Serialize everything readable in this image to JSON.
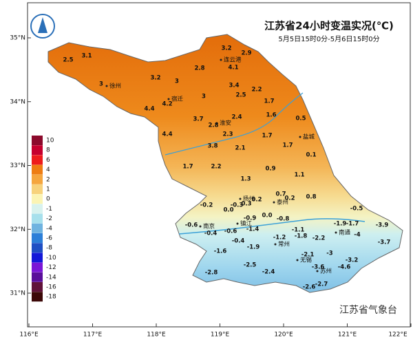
{
  "header": {
    "title": "江苏省24小时变温实况(℃)",
    "subtitle": "5月5日15时0分-5月6日15时0分"
  },
  "agency": "江苏省气象台",
  "lon_ticks": [
    {
      "value": 116,
      "label": "116°E"
    },
    {
      "value": 117,
      "label": "117°E"
    },
    {
      "value": 118,
      "label": "118°E"
    },
    {
      "value": 119,
      "label": "119°E"
    },
    {
      "value": 120,
      "label": "120°E"
    },
    {
      "value": 121,
      "label": "121°E"
    },
    {
      "value": 122,
      "label": "122°E"
    }
  ],
  "lat_ticks": [
    {
      "value": 35,
      "label": "35°N"
    },
    {
      "value": 34,
      "label": "34°N"
    },
    {
      "value": 33,
      "label": "33°N"
    },
    {
      "value": 32,
      "label": "32°N"
    },
    {
      "value": 31,
      "label": "31°N"
    }
  ],
  "legend": [
    {
      "value": 10,
      "color": "#8c0a2c"
    },
    {
      "value": 8,
      "color": "#c6002e"
    },
    {
      "value": 6,
      "color": "#ee1c1c"
    },
    {
      "value": 4,
      "color": "#ee7d13"
    },
    {
      "value": 2,
      "color": "#f5a63e"
    },
    {
      "value": 1,
      "color": "#f7d27c"
    },
    {
      "value": 0,
      "color": "#fbf4b4"
    },
    {
      "value": -1,
      "color": "#d8f2ee"
    },
    {
      "value": -2,
      "color": "#a7e0ec"
    },
    {
      "value": -4,
      "color": "#6fb3e0"
    },
    {
      "value": -6,
      "color": "#2c7fd8"
    },
    {
      "value": -8,
      "color": "#1f4fc4"
    },
    {
      "value": -10,
      "color": "#1318d8"
    },
    {
      "value": -12,
      "color": "#7a16d6"
    },
    {
      "value": -14,
      "color": "#5a0f9a"
    },
    {
      "value": -16,
      "color": "#60123a"
    },
    {
      "value": -18,
      "color": "#3c0808"
    }
  ],
  "cities": [
    "连云港",
    "徐州",
    "宿迁",
    "淮安",
    "盐城",
    "扬州",
    "泰州",
    "南京",
    "镇江",
    "南通",
    "常州",
    "无锡",
    "苏州"
  ],
  "readings": [
    2.5,
    3.1,
    3.0,
    3.2,
    3.0,
    2.8,
    3.2,
    2.9,
    4.1,
    3.4,
    2.2,
    2.5,
    4.4,
    4.2,
    3.0,
    1.7,
    1.6,
    0.5,
    3.7,
    2.8,
    2.4,
    2.3,
    1.7,
    4.4,
    3.8,
    2.1,
    1.7,
    0.1,
    1.7,
    2.2,
    0.9,
    1.3,
    1.1,
    0.7,
    0.2,
    0.2,
    0.8,
    -0.2,
    {
      "value": 0,
      "label": "0.0"
    },
    -0.3,
    0.3,
    -0.5,
    -0.6,
    -0.4,
    -0.9,
    {
      "value": 0,
      "label": "0.0"
    },
    -0.8,
    -1.4,
    -0.6,
    -1.1,
    -1.9,
    -1.7,
    -3.9,
    -4.0,
    -3.7,
    -1.2,
    -1.8,
    -2.2,
    -0.4,
    -1.9,
    -1.6,
    -2.1,
    -3.0,
    -3.2,
    -2.5,
    -3.6,
    -4.6,
    -2.4,
    -2.8,
    -2.6,
    -2.7
  ]
}
